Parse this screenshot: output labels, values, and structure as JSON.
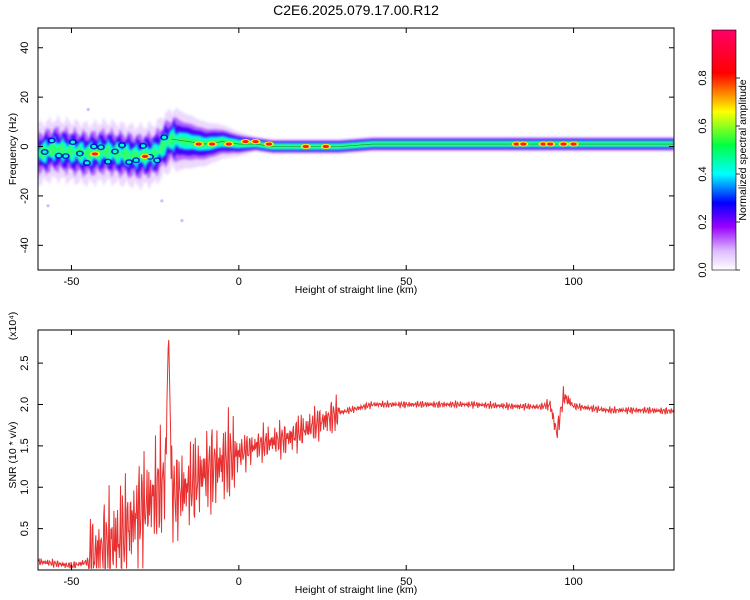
{
  "chart_data": [
    {
      "type": "heatmap",
      "title": "C2E6.2025.079.17.00.R12",
      "xlabel": "Height of straight line (km)",
      "ylabel": "Frequency (Hz)",
      "xlim": [
        -60,
        130
      ],
      "ylim": [
        -50,
        48
      ],
      "xticks": [
        "-50",
        "0",
        "50",
        "100"
      ],
      "yticks": [
        "40",
        "20",
        "0",
        "-20",
        "-40"
      ],
      "xtick_values": [
        -50,
        0,
        50,
        100
      ],
      "ytick_values": [
        40,
        20,
        0,
        -20,
        -40
      ],
      "grid": false,
      "colorbar": {
        "label": "Normalized spectral amplitude",
        "range": [
          0,
          1
        ],
        "ticks": [
          "0.0",
          "0.2",
          "0.4",
          "0.6",
          "0.8"
        ],
        "tick_values": [
          0.0,
          0.2,
          0.4,
          0.6,
          0.8
        ],
        "colors": [
          "#ffffff",
          "#ddbbff",
          "#9900ff",
          "#0000ff",
          "#00ffff",
          "#00ff44",
          "#ffff00",
          "#ff0000",
          "#ff0066"
        ]
      },
      "centerline": [
        [
          -60,
          -3
        ],
        [
          -55,
          -1
        ],
        [
          -50,
          -2
        ],
        [
          -45,
          -3
        ],
        [
          -40,
          -2
        ],
        [
          -35,
          -3
        ],
        [
          -30,
          -4
        ],
        [
          -25,
          -3
        ],
        [
          -22,
          1
        ],
        [
          -20,
          3
        ],
        [
          -15,
          2
        ],
        [
          -10,
          1
        ],
        [
          -5,
          2
        ],
        [
          0,
          1
        ],
        [
          5,
          1
        ],
        [
          10,
          0
        ],
        [
          20,
          0
        ],
        [
          30,
          0
        ],
        [
          40,
          1
        ],
        [
          50,
          1
        ],
        [
          60,
          1
        ],
        [
          70,
          1
        ],
        [
          80,
          1
        ],
        [
          90,
          1
        ],
        [
          100,
          1
        ],
        [
          110,
          1
        ],
        [
          120,
          1
        ],
        [
          130,
          1
        ]
      ],
      "hotspots": [
        [
          -43,
          -3
        ],
        [
          -28,
          -4
        ],
        [
          -12,
          1
        ],
        [
          -8,
          1
        ],
        [
          -3,
          1
        ],
        [
          2,
          2
        ],
        [
          5,
          2
        ],
        [
          9,
          1
        ],
        [
          20,
          0
        ],
        [
          26,
          0
        ],
        [
          83,
          1
        ],
        [
          85,
          1
        ],
        [
          91,
          1
        ],
        [
          93,
          1
        ],
        [
          97,
          1
        ],
        [
          100,
          1
        ]
      ]
    },
    {
      "type": "line",
      "title": "",
      "xlabel": "Height of straight line (km)",
      "ylabel": "SNR (10 * v/v)",
      "scale_note": "(x10⁴)",
      "xlim": [
        -60,
        130
      ],
      "ylim": [
        0,
        2.9
      ],
      "xticks": [
        "-50",
        "0",
        "50",
        "100"
      ],
      "yticks": [
        "0.5",
        "1.0",
        "1.5",
        "2.0",
        "2.5"
      ],
      "xtick_values": [
        -50,
        0,
        50,
        100
      ],
      "ytick_values": [
        0.5,
        1.0,
        1.5,
        2.0,
        2.5
      ],
      "color": "#e83030",
      "grid": false,
      "series": [
        {
          "x": [
            -60,
            -55,
            -50,
            -45,
            -40,
            -35,
            -30,
            -25,
            -22,
            -21,
            -20,
            -15,
            -10,
            -5,
            0,
            5,
            10,
            15,
            20,
            25,
            30,
            35,
            40,
            50,
            60,
            70,
            80,
            90,
            93,
            95,
            97,
            100,
            110,
            120,
            130
          ],
          "y": [
            0.1,
            0.08,
            0.05,
            0.1,
            0.25,
            0.4,
            0.7,
            0.9,
            1.1,
            2.9,
            0.9,
            1.0,
            1.2,
            1.3,
            1.4,
            1.5,
            1.55,
            1.6,
            1.7,
            1.8,
            1.9,
            1.95,
            2.0,
            2.0,
            2.0,
            2.0,
            1.98,
            1.97,
            2.0,
            1.65,
            2.1,
            1.98,
            1.93,
            1.93,
            1.92
          ]
        }
      ]
    }
  ]
}
